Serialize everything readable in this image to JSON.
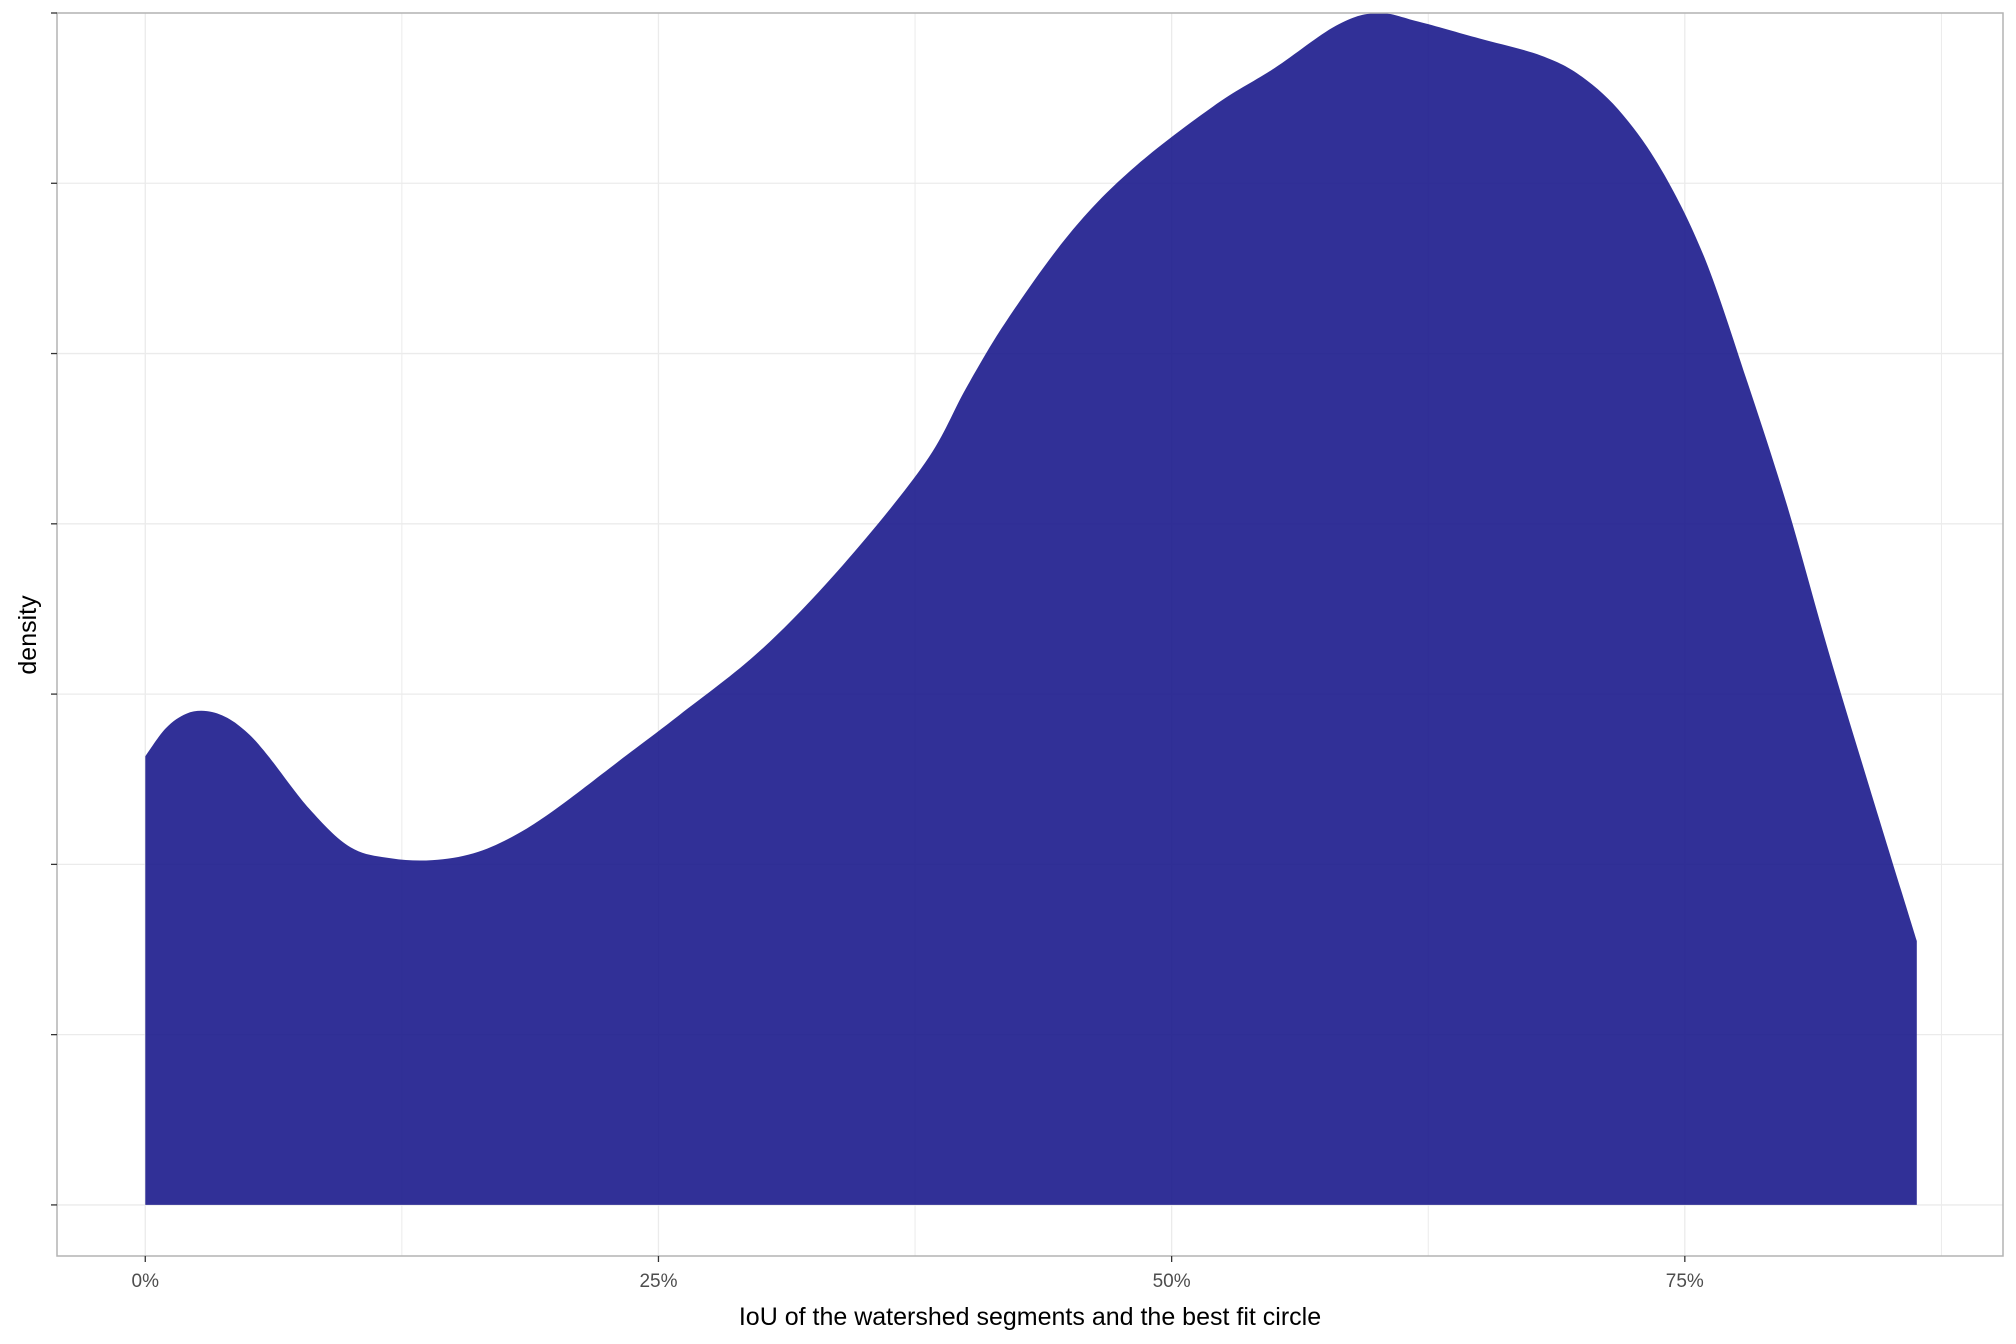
{
  "chart_data": {
    "type": "area",
    "title": "",
    "xlabel": "IoU of the watershed segments and the best fit circle",
    "ylabel": "density",
    "x_ticks": [
      {
        "value": 0,
        "label": "0%"
      },
      {
        "value": 0.25,
        "label": "25%"
      },
      {
        "value": 0.5,
        "label": "50%"
      },
      {
        "value": 0.75,
        "label": "75%"
      }
    ],
    "xlim": [
      -0.043,
      0.905
    ],
    "ylim": [
      -0.06,
      1.4
    ],
    "y_tick_labels_shown": false,
    "grid": true,
    "fill_color": "#1b1a8c",
    "fill_opacity": 0.9,
    "series": [
      {
        "x": [
          0.0,
          0.01,
          0.02,
          0.03,
          0.04,
          0.05,
          0.06,
          0.08,
          0.1,
          0.12,
          0.14,
          0.16,
          0.18,
          0.2,
          0.23,
          0.26,
          0.3,
          0.34,
          0.38,
          0.4,
          0.42,
          0.45,
          0.48,
          0.52,
          0.55,
          0.58,
          0.6,
          0.62,
          0.65,
          0.68,
          0.7,
          0.72,
          0.74,
          0.76,
          0.78,
          0.8,
          0.82,
          0.84,
          0.863
        ],
        "values": [
          0.527,
          0.56,
          0.577,
          0.58,
          0.572,
          0.554,
          0.527,
          0.465,
          0.42,
          0.407,
          0.405,
          0.413,
          0.434,
          0.465,
          0.52,
          0.575,
          0.652,
          0.752,
          0.872,
          0.96,
          1.04,
          1.14,
          1.215,
          1.29,
          1.335,
          1.385,
          1.4,
          1.39,
          1.37,
          1.35,
          1.325,
          1.28,
          1.21,
          1.11,
          0.97,
          0.82,
          0.65,
          0.49,
          0.31
        ]
      }
    ]
  }
}
